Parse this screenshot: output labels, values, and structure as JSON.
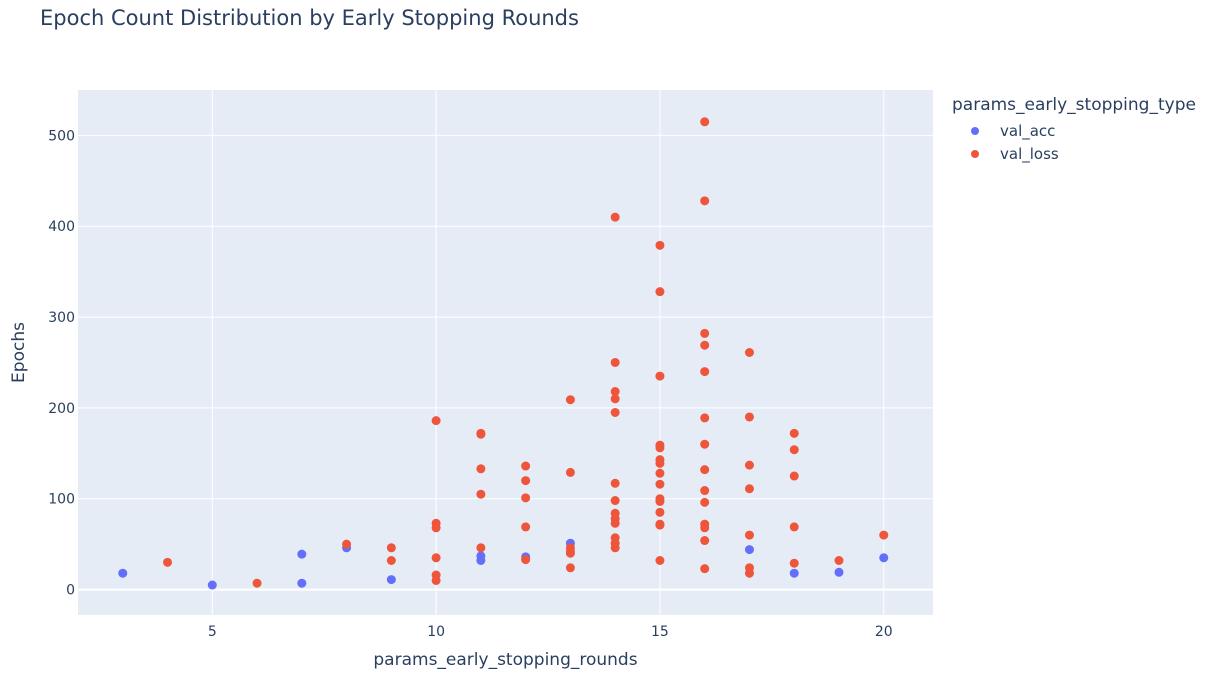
{
  "chart_data": {
    "type": "scatter",
    "title": "Epoch Count Distribution by Early Stopping Rounds",
    "xlabel": "params_early_stopping_rounds",
    "ylabel": "Epochs",
    "xlim": [
      2.0,
      21.1
    ],
    "ylim": [
      -28,
      550
    ],
    "x_ticks": [
      5,
      10,
      15,
      20
    ],
    "y_ticks": [
      0,
      100,
      200,
      300,
      400,
      500
    ],
    "grid": true,
    "legend_title": "params_early_stopping_type",
    "legend_placement": "right",
    "series": [
      {
        "name": "val_acc",
        "color": "#636efa",
        "points": [
          [
            3,
            18
          ],
          [
            5,
            5
          ],
          [
            7,
            39
          ],
          [
            7,
            7
          ],
          [
            8,
            46
          ],
          [
            9,
            11
          ],
          [
            11,
            37
          ],
          [
            11,
            32
          ],
          [
            12,
            36
          ],
          [
            13,
            51
          ],
          [
            17,
            44
          ],
          [
            18,
            18
          ],
          [
            19,
            19
          ],
          [
            20,
            35
          ]
        ]
      },
      {
        "name": "val_loss",
        "color": "#ef553b",
        "points": [
          [
            4,
            30
          ],
          [
            6,
            7
          ],
          [
            8,
            50
          ],
          [
            9,
            46
          ],
          [
            9,
            32
          ],
          [
            10,
            186
          ],
          [
            10,
            73
          ],
          [
            10,
            68
          ],
          [
            10,
            35
          ],
          [
            10,
            16
          ],
          [
            10,
            10
          ],
          [
            11,
            172
          ],
          [
            11,
            171
          ],
          [
            11,
            133
          ],
          [
            11,
            105
          ],
          [
            11,
            46
          ],
          [
            12,
            136
          ],
          [
            12,
            120
          ],
          [
            12,
            101
          ],
          [
            12,
            69
          ],
          [
            12,
            33
          ],
          [
            13,
            209
          ],
          [
            13,
            129
          ],
          [
            13,
            46
          ],
          [
            13,
            42
          ],
          [
            13,
            40
          ],
          [
            13,
            24
          ],
          [
            14,
            410
          ],
          [
            14,
            250
          ],
          [
            14,
            218
          ],
          [
            14,
            210
          ],
          [
            14,
            195
          ],
          [
            14,
            117
          ],
          [
            14,
            98
          ],
          [
            14,
            84
          ],
          [
            14,
            78
          ],
          [
            14,
            73
          ],
          [
            14,
            57
          ],
          [
            14,
            51
          ],
          [
            14,
            46
          ],
          [
            15,
            379
          ],
          [
            15,
            328
          ],
          [
            15,
            235
          ],
          [
            15,
            159
          ],
          [
            15,
            156
          ],
          [
            15,
            143
          ],
          [
            15,
            139
          ],
          [
            15,
            128
          ],
          [
            15,
            116
          ],
          [
            15,
            100
          ],
          [
            15,
            97
          ],
          [
            15,
            85
          ],
          [
            15,
            72
          ],
          [
            15,
            71
          ],
          [
            15,
            32
          ],
          [
            16,
            515
          ],
          [
            16,
            428
          ],
          [
            16,
            282
          ],
          [
            16,
            269
          ],
          [
            16,
            240
          ],
          [
            16,
            189
          ],
          [
            16,
            160
          ],
          [
            16,
            132
          ],
          [
            16,
            109
          ],
          [
            16,
            96
          ],
          [
            16,
            72
          ],
          [
            16,
            68
          ],
          [
            16,
            54
          ],
          [
            16,
            23
          ],
          [
            17,
            261
          ],
          [
            17,
            190
          ],
          [
            17,
            137
          ],
          [
            17,
            111
          ],
          [
            17,
            60
          ],
          [
            17,
            24
          ],
          [
            17,
            18
          ],
          [
            18,
            172
          ],
          [
            18,
            154
          ],
          [
            18,
            125
          ],
          [
            18,
            69
          ],
          [
            18,
            29
          ],
          [
            19,
            32
          ],
          [
            20,
            60
          ]
        ]
      }
    ]
  }
}
